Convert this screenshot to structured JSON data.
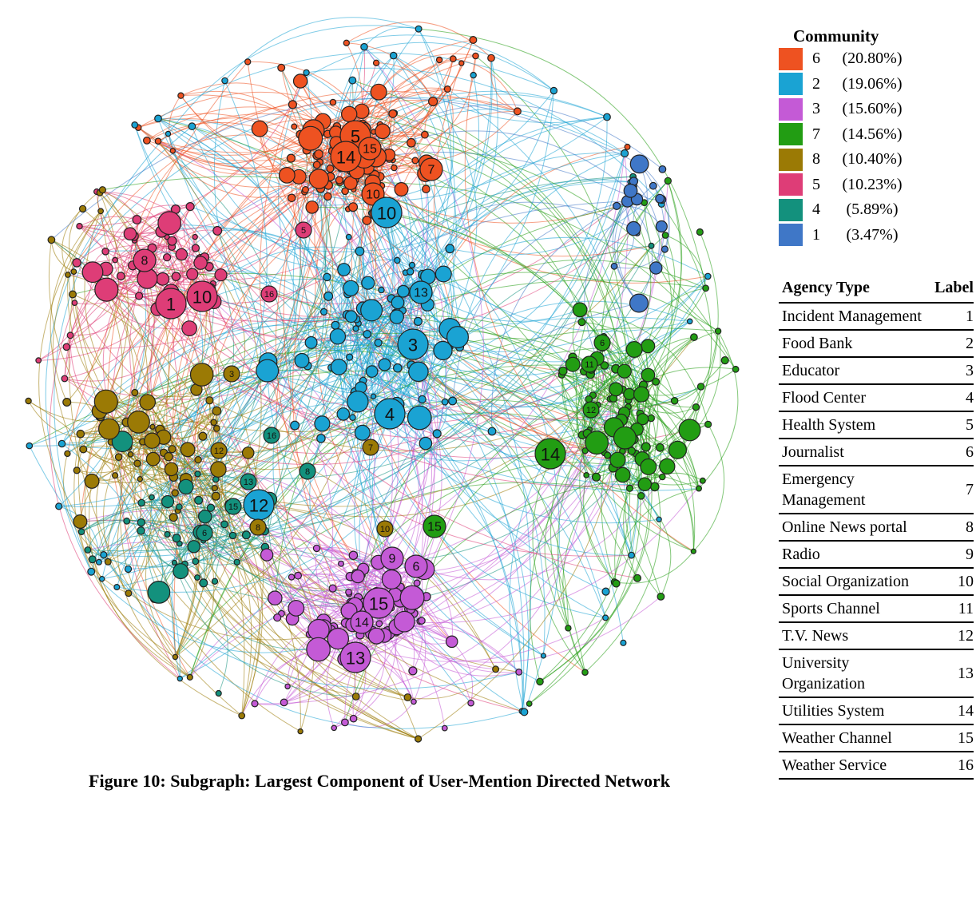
{
  "figure": {
    "caption": "Figure 10: Subgraph: Largest Component of User-Mention Directed Network"
  },
  "colors": {
    "6": "#EE5221",
    "2": "#1AA3D3",
    "3": "#C45AD6",
    "7": "#229D13",
    "8": "#9B7A05",
    "5": "#DE3D77",
    "4": "#13917D",
    "1": "#3F77C7"
  },
  "community_legend": {
    "title": "Community",
    "items": [
      {
        "id": "6",
        "percent": "(20.80%)",
        "color": "#EE5221"
      },
      {
        "id": "2",
        "percent": "(19.06%)",
        "color": "#1AA3D3"
      },
      {
        "id": "3",
        "percent": "(15.60%)",
        "color": "#C45AD6"
      },
      {
        "id": "7",
        "percent": "(14.56%)",
        "color": "#229D13"
      },
      {
        "id": "8",
        "percent": "(10.40%)",
        "color": "#9B7A05"
      },
      {
        "id": "5",
        "percent": "(10.23%)",
        "color": "#DE3D77"
      },
      {
        "id": "4",
        "percent": "(5.89%)",
        "color": "#13917D"
      },
      {
        "id": "1",
        "percent": "(3.47%)",
        "color": "#3F77C7"
      }
    ]
  },
  "agency_table": {
    "headers": [
      "Agency Type",
      "Label"
    ],
    "rows": [
      [
        "Incident Management",
        "1"
      ],
      [
        "Food Bank",
        "2"
      ],
      [
        "Educator",
        "3"
      ],
      [
        "Flood Center",
        "4"
      ],
      [
        "Health System",
        "5"
      ],
      [
        "Journalist",
        "6"
      ],
      [
        "Emergency Management",
        "7"
      ],
      [
        "Online News portal",
        "8"
      ],
      [
        "Radio",
        "9"
      ],
      [
        "Social Organization",
        "10"
      ],
      [
        "Sports Channel",
        "11"
      ],
      [
        "T.V. News",
        "12"
      ],
      [
        "University Organization",
        "13"
      ],
      [
        "Utilities System",
        "14"
      ],
      [
        "Weather Channel",
        "15"
      ],
      [
        "Weather Service",
        "16"
      ]
    ]
  },
  "labeled_nodes": [
    {
      "label": "5",
      "community": "6",
      "size": "large"
    },
    {
      "label": "14",
      "community": "6",
      "size": "large"
    },
    {
      "label": "15",
      "community": "6",
      "size": "medium"
    },
    {
      "label": "7",
      "community": "6",
      "size": "medium"
    },
    {
      "label": "10",
      "community": "6",
      "size": "medium"
    },
    {
      "label": "10",
      "community": "2",
      "size": "large"
    },
    {
      "label": "5",
      "community": "5",
      "size": "small"
    },
    {
      "label": "8",
      "community": "5",
      "size": "medium"
    },
    {
      "label": "1",
      "community": "5",
      "size": "large"
    },
    {
      "label": "10",
      "community": "5",
      "size": "large"
    },
    {
      "label": "16",
      "community": "5",
      "size": "small"
    },
    {
      "label": "13",
      "community": "2",
      "size": "medium"
    },
    {
      "label": "3",
      "community": "2",
      "size": "large"
    },
    {
      "label": "4",
      "community": "2",
      "size": "large"
    },
    {
      "label": "3",
      "community": "8",
      "size": "small"
    },
    {
      "label": "7",
      "community": "8",
      "size": "small"
    },
    {
      "label": "12",
      "community": "8",
      "size": "small"
    },
    {
      "label": "16",
      "community": "4",
      "size": "small"
    },
    {
      "label": "8",
      "community": "4",
      "size": "small"
    },
    {
      "label": "13",
      "community": "4",
      "size": "small"
    },
    {
      "label": "15",
      "community": "4",
      "size": "small"
    },
    {
      "label": "12",
      "community": "2",
      "size": "large"
    },
    {
      "label": "8",
      "community": "8",
      "size": "small"
    },
    {
      "label": "6",
      "community": "4",
      "size": "small"
    },
    {
      "label": "10",
      "community": "8",
      "size": "small"
    },
    {
      "label": "15",
      "community": "7",
      "size": "medium"
    },
    {
      "label": "9",
      "community": "3",
      "size": "medium"
    },
    {
      "label": "6",
      "community": "3",
      "size": "medium"
    },
    {
      "label": "15",
      "community": "3",
      "size": "large"
    },
    {
      "label": "14",
      "community": "3",
      "size": "medium"
    },
    {
      "label": "13",
      "community": "3",
      "size": "large"
    },
    {
      "label": "6",
      "community": "7",
      "size": "small"
    },
    {
      "label": "11",
      "community": "7",
      "size": "small"
    },
    {
      "label": "12",
      "community": "7",
      "size": "small"
    },
    {
      "label": "14",
      "community": "7",
      "size": "large"
    }
  ]
}
